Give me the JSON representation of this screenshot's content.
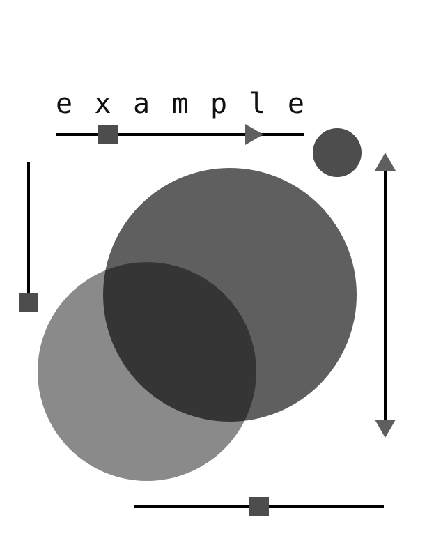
{
  "title": "example",
  "colors": {
    "background": "#ffffff",
    "line": "#000000",
    "handle": "#4d4d4d",
    "arrow": "#5f5f5f",
    "large_circle": "#5f5f5f",
    "small_circle": "#4d4d4d",
    "light_circle": "#8a8a8a",
    "overlap": "#353535"
  },
  "sliders": [
    {
      "name": "top-horizontal-slider",
      "orientation": "horizontal",
      "position": 0.21
    },
    {
      "name": "left-vertical-slider",
      "orientation": "vertical",
      "position": 1.0
    },
    {
      "name": "bottom-horizontal-slider",
      "orientation": "horizontal",
      "position": 0.5
    }
  ],
  "icons": {
    "right_arrow": "arrow-right-icon",
    "up_arrow": "arrow-up-icon",
    "down_arrow": "arrow-down-icon"
  }
}
